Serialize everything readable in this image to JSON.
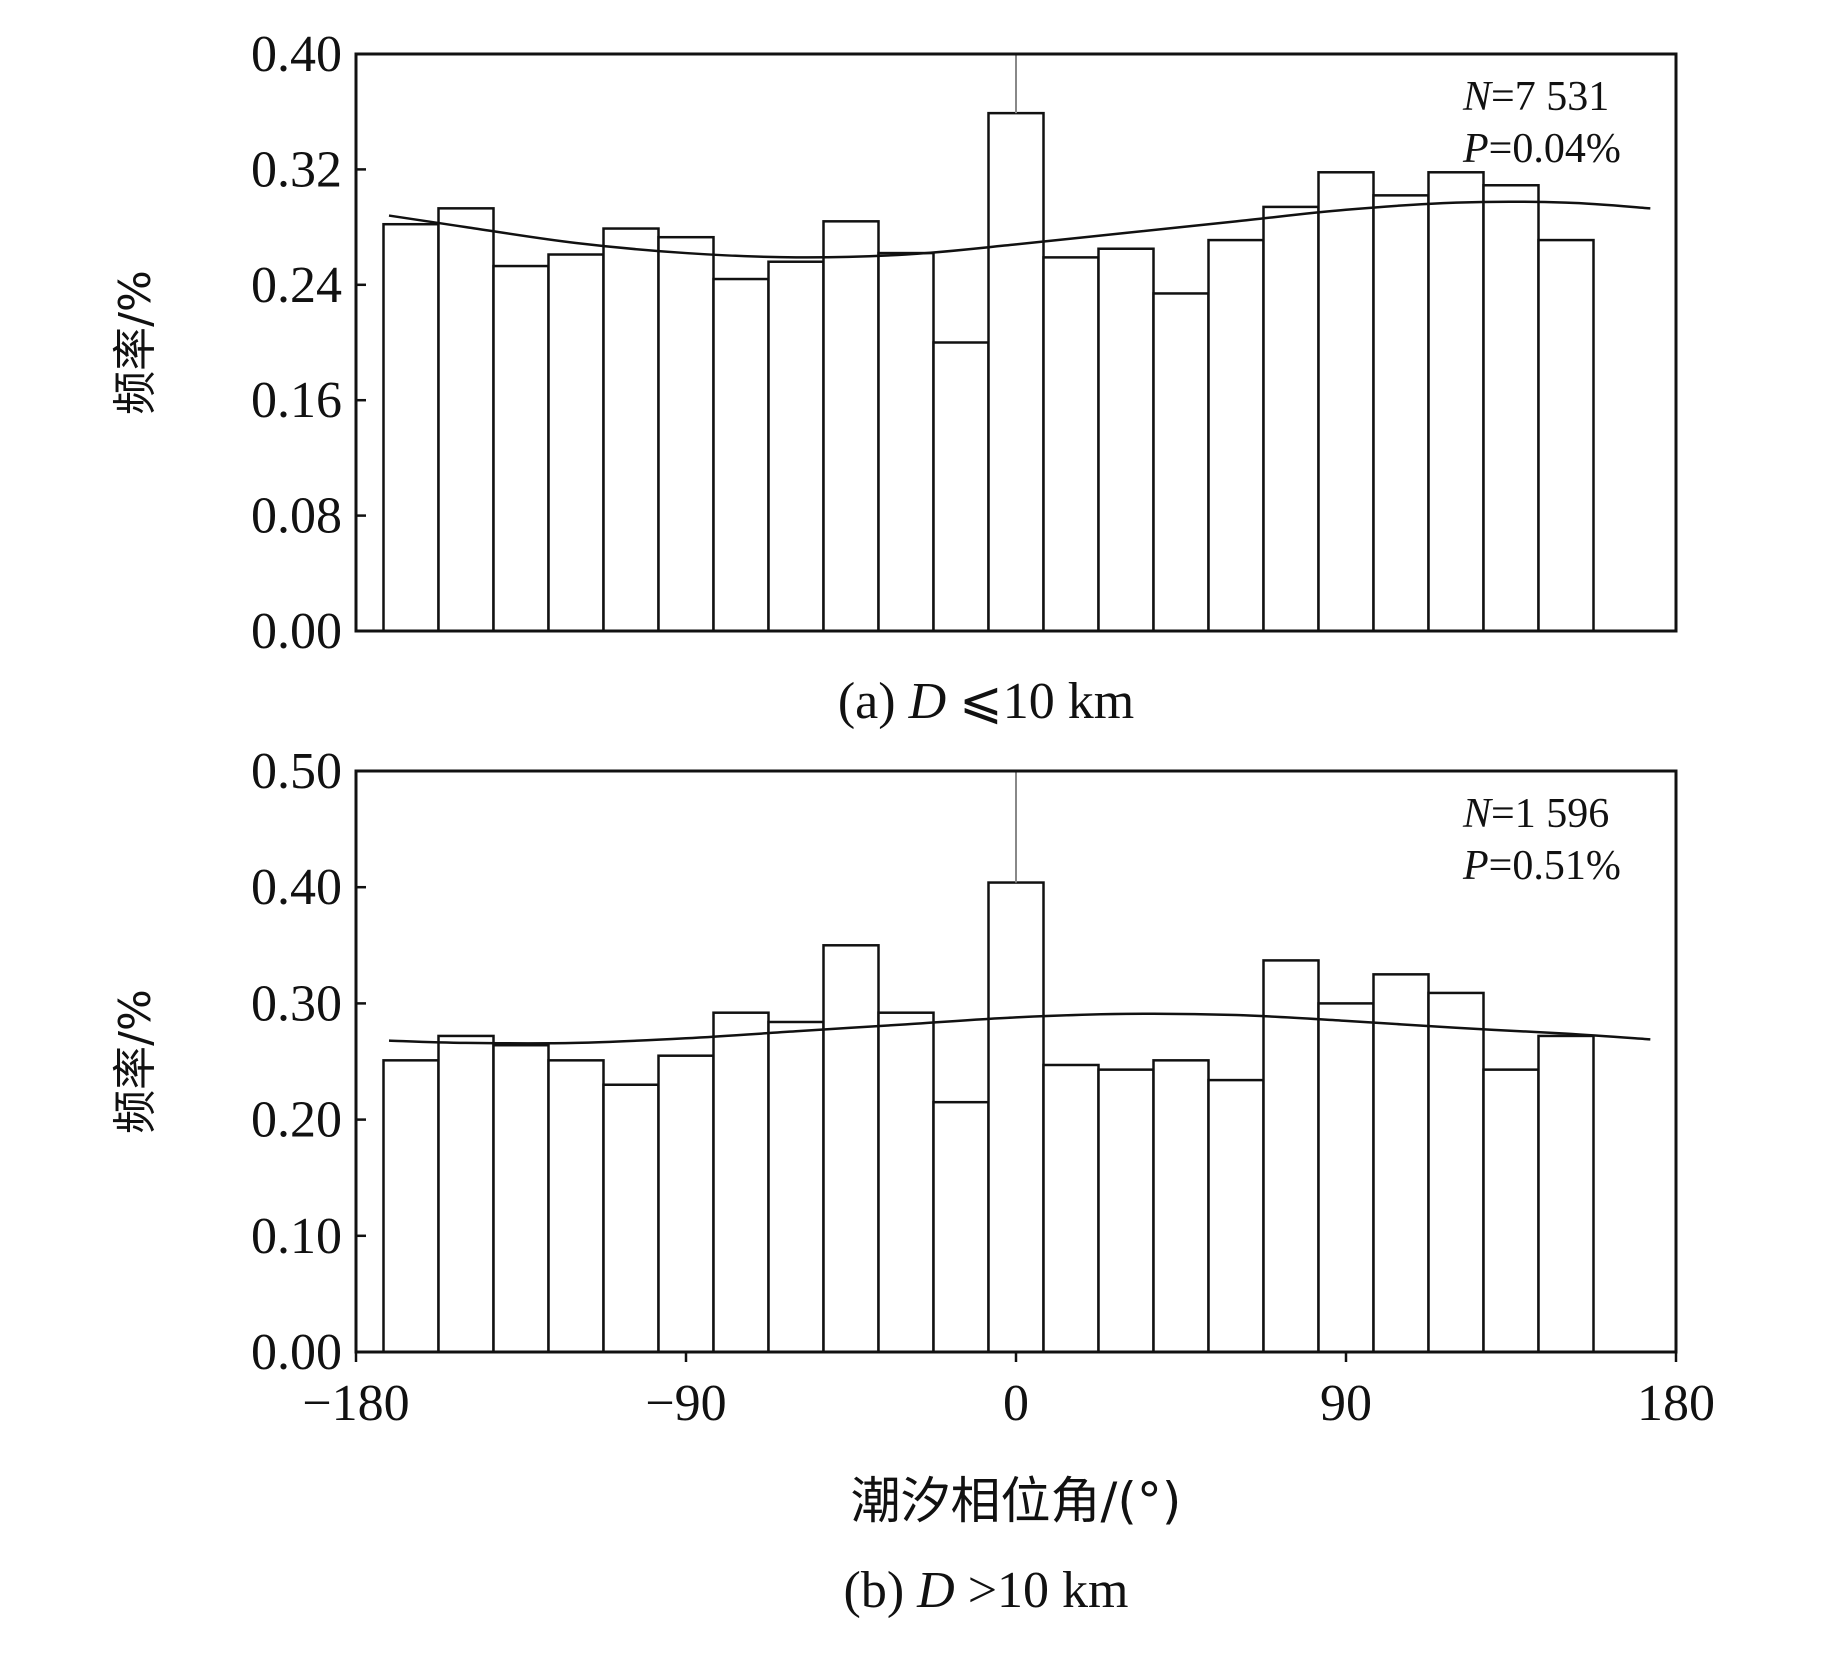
{
  "chart_data": [
    {
      "type": "bar",
      "panel": "a",
      "caption_prefix": "(a) ",
      "caption_var": "D",
      "caption_rest": " ⩽10 km",
      "ylabel": "频率/%",
      "xlabel": "",
      "xlim": [
        -180,
        180
      ],
      "ylim": [
        0,
        0.4
      ],
      "yticks": [
        "0.00",
        "0.08",
        "0.16",
        "0.24",
        "0.32",
        "0.40"
      ],
      "ytick_values": [
        0,
        0.08,
        0.16,
        0.24,
        0.32,
        0.4
      ],
      "xticks": [],
      "bin_width": 15,
      "bin_centers": [
        -165,
        -150,
        -135,
        -120,
        -105,
        -90,
        -75,
        -60,
        -45,
        -30,
        -15,
        0,
        15,
        30,
        45,
        60,
        75,
        90,
        105,
        120,
        135,
        150,
        165
      ],
      "values": [
        0.282,
        0.293,
        0.253,
        0.261,
        0.279,
        0.273,
        0.244,
        0.256,
        0.284,
        0.262,
        0.2,
        0.359,
        0.259,
        0.265,
        0.234,
        0.271,
        0.294,
        0.318,
        0.302,
        0.318,
        0.309,
        0.271,
        0.0
      ],
      "curve_x": [
        -171,
        -150,
        -120,
        -90,
        -60,
        -30,
        0,
        30,
        60,
        90,
        120,
        150,
        173
      ],
      "curve_y": [
        0.288,
        0.28,
        0.269,
        0.262,
        0.259,
        0.261,
        0.268,
        0.276,
        0.284,
        0.292,
        0.297,
        0.297,
        0.293
      ],
      "annotation": {
        "n_label": "N",
        "n_value": "=7 531",
        "p_label": "P",
        "p_value": "=0.04%"
      }
    },
    {
      "type": "bar",
      "panel": "b",
      "caption_prefix": "(b) ",
      "caption_var": "D",
      "caption_rest": " >10 km",
      "ylabel": "频率/%",
      "xlabel": "潮汐相位角/(°)",
      "xlim": [
        -180,
        180
      ],
      "ylim": [
        0,
        0.5
      ],
      "yticks": [
        "0.00",
        "0.10",
        "0.20",
        "0.30",
        "0.40",
        "0.50"
      ],
      "ytick_values": [
        0,
        0.1,
        0.2,
        0.3,
        0.4,
        0.5
      ],
      "xticks": [
        "−180",
        "−90",
        "0",
        "90",
        "180"
      ],
      "xtick_values": [
        -180,
        -90,
        0,
        90,
        180
      ],
      "bin_width": 15,
      "bin_centers": [
        -165,
        -150,
        -135,
        -120,
        -105,
        -90,
        -75,
        -60,
        -45,
        -30,
        -15,
        0,
        15,
        30,
        45,
        60,
        75,
        90,
        105,
        120,
        135,
        150,
        165
      ],
      "values": [
        0.251,
        0.272,
        0.264,
        0.251,
        0.23,
        0.255,
        0.292,
        0.284,
        0.35,
        0.292,
        0.215,
        0.404,
        0.247,
        0.243,
        0.251,
        0.234,
        0.337,
        0.3,
        0.325,
        0.309,
        0.243,
        0.272,
        0.0
      ],
      "curve_x": [
        -171,
        -150,
        -120,
        -90,
        -60,
        -30,
        0,
        30,
        60,
        90,
        120,
        150,
        173
      ],
      "curve_y": [
        0.268,
        0.266,
        0.266,
        0.27,
        0.276,
        0.282,
        0.288,
        0.291,
        0.29,
        0.285,
        0.279,
        0.274,
        0.269
      ],
      "annotation": {
        "n_label": "N",
        "n_value": "=1 596",
        "p_label": "P",
        "p_value": "=0.51%"
      }
    }
  ]
}
